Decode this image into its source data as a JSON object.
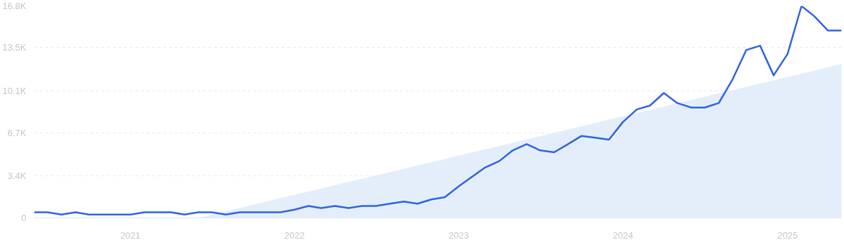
{
  "chart_data": {
    "type": "line",
    "x": [
      "2020-06",
      "2020-07",
      "2020-08",
      "2020-09",
      "2020-10",
      "2020-11",
      "2020-12",
      "2021-01",
      "2021-02",
      "2021-03",
      "2021-04",
      "2021-05",
      "2021-06",
      "2021-07",
      "2021-08",
      "2021-09",
      "2021-10",
      "2021-11",
      "2021-12",
      "2022-01",
      "2022-02",
      "2022-03",
      "2022-04",
      "2022-05",
      "2022-06",
      "2022-07",
      "2022-08",
      "2022-09",
      "2022-10",
      "2022-11",
      "2022-12",
      "2023-01",
      "2023-02",
      "2023-03",
      "2023-04",
      "2023-05",
      "2023-06",
      "2023-07",
      "2023-08",
      "2023-09",
      "2023-10",
      "2023-11",
      "2023-12",
      "2024-01",
      "2024-02",
      "2024-03",
      "2024-04",
      "2024-05",
      "2024-06",
      "2024-07",
      "2024-08",
      "2024-09",
      "2024-10",
      "2024-11",
      "2024-12",
      "2025-01",
      "2025-02",
      "2025-03",
      "2025-04",
      "2025-05"
    ],
    "series": [
      {
        "type": "area",
        "color": "#e4eefb",
        "x": [
          "2021-06",
          "2025-05"
        ],
        "values": [
          0,
          12200
        ]
      },
      {
        "color": "#2f62e6",
        "values": [
          450,
          450,
          270,
          450,
          270,
          270,
          270,
          270,
          450,
          450,
          450,
          270,
          450,
          450,
          270,
          450,
          450,
          450,
          450,
          650,
          950,
          780,
          950,
          780,
          950,
          950,
          1130,
          1290,
          1130,
          1460,
          1640,
          2500,
          3300,
          4000,
          4500,
          5350,
          5850,
          5350,
          5200,
          5850,
          6500,
          6350,
          6200,
          7600,
          8600,
          8900,
          9900,
          9100,
          8750,
          8750,
          9100,
          11000,
          13300,
          13650,
          11300,
          13000,
          16800,
          16000,
          14850,
          14850
        ]
      }
    ],
    "xlim": [
      "2020-06",
      "2025-05"
    ],
    "xticks": [
      {
        "value": "2021",
        "label": "2021"
      },
      {
        "value": "2022",
        "label": "2022"
      },
      {
        "value": "2023",
        "label": "2023"
      },
      {
        "value": "2024",
        "label": "2024"
      },
      {
        "value": "2025",
        "label": "2025"
      }
    ],
    "ylim": [
      0,
      16800
    ],
    "yticks": [
      0,
      {
        "value": 3360,
        "label": "3.4K"
      },
      {
        "value": 6720,
        "label": "6.7K"
      },
      {
        "value": 10080,
        "label": "10.1K"
      },
      {
        "value": 13500,
        "label": "13.5K"
      },
      {
        "value": 16800,
        "label": "16.8K"
      }
    ],
    "grid": "y",
    "line_style": "solid",
    "marker": "none"
  }
}
